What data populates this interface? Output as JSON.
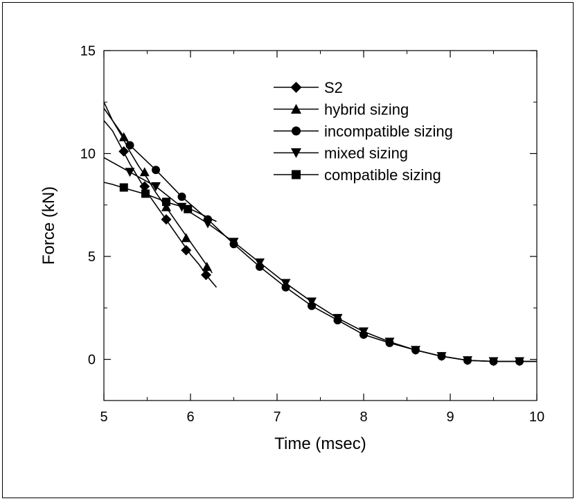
{
  "chart_data": {
    "type": "line",
    "title": "",
    "xlabel": "Time (msec)",
    "ylabel": "Force (kN)",
    "xlim": [
      5,
      10
    ],
    "ylim": [
      -2,
      15
    ],
    "xticks": [
      5,
      6,
      7,
      8,
      9,
      10
    ],
    "yticks": [
      0,
      5,
      10,
      15
    ],
    "grid": false,
    "legend": "top-right",
    "series": [
      {
        "name": "S2",
        "marker": "diamond",
        "x": [
          5.0,
          5.1,
          5.2,
          5.3,
          5.4,
          5.5,
          5.6,
          5.7,
          5.8,
          5.9,
          6.0,
          6.1,
          6.2,
          6.3
        ],
        "y": [
          11.6,
          11.1,
          10.3,
          9.5,
          8.8,
          8.1,
          7.5,
          6.9,
          6.3,
          5.7,
          5.1,
          4.6,
          4.0,
          3.5
        ],
        "markers_x": [
          5.23,
          5.47,
          5.72,
          5.95,
          6.18
        ],
        "markers_y": [
          10.1,
          8.4,
          6.8,
          5.3,
          4.1
        ]
      },
      {
        "name": "hybrid sizing",
        "marker": "triangle-up",
        "x": [
          5.0,
          5.1,
          5.2,
          5.3,
          5.4,
          5.5,
          5.6,
          5.7,
          5.8,
          5.9,
          6.0,
          6.1,
          6.2,
          6.25
        ],
        "y": [
          12.5,
          11.6,
          10.9,
          10.1,
          9.4,
          8.8,
          8.1,
          7.5,
          6.9,
          6.3,
          5.7,
          5.1,
          4.5,
          4.2
        ],
        "markers_x": [
          5.23,
          5.47,
          5.72,
          5.95,
          6.19
        ],
        "markers_y": [
          10.8,
          9.1,
          7.4,
          5.9,
          4.5
        ]
      },
      {
        "name": "incompatible sizing",
        "marker": "circle",
        "x": [
          5.0,
          5.3,
          5.6,
          5.9,
          6.2,
          6.5,
          6.8,
          7.1,
          7.4,
          7.7,
          8.0,
          8.3,
          8.6,
          8.9,
          9.2,
          9.5,
          9.8,
          10.0
        ],
        "y": [
          12.2,
          10.4,
          9.2,
          7.9,
          6.8,
          5.6,
          4.5,
          3.5,
          2.6,
          1.9,
          1.2,
          0.8,
          0.45,
          0.15,
          -0.05,
          -0.1,
          -0.1,
          -0.1
        ],
        "markers_x": [
          5.3,
          5.6,
          5.9,
          6.2,
          6.5,
          6.8,
          7.1,
          7.4,
          7.7,
          8.0,
          8.3,
          8.6,
          8.9,
          9.2,
          9.5,
          9.8
        ],
        "markers_y": [
          10.4,
          9.2,
          7.9,
          6.8,
          5.6,
          4.5,
          3.5,
          2.6,
          1.9,
          1.2,
          0.8,
          0.45,
          0.15,
          -0.05,
          -0.1,
          -0.1
        ]
      },
      {
        "name": "mixed sizing",
        "marker": "triangle-down",
        "x": [
          5.0,
          5.3,
          5.6,
          5.9,
          6.2,
          6.5,
          6.8,
          7.1,
          7.4,
          7.7,
          8.0,
          8.3,
          8.6,
          8.9,
          9.2,
          9.5,
          9.8,
          10.0
        ],
        "y": [
          9.8,
          9.1,
          8.4,
          7.4,
          6.6,
          5.7,
          4.7,
          3.7,
          2.8,
          2.0,
          1.35,
          0.85,
          0.45,
          0.15,
          -0.05,
          -0.1,
          -0.1,
          -0.1
        ],
        "markers_x": [
          5.3,
          5.6,
          5.9,
          6.2,
          6.5,
          6.8,
          7.1,
          7.4,
          7.7,
          8.0,
          8.3,
          8.6,
          8.9,
          9.2,
          9.5,
          9.8
        ],
        "markers_y": [
          9.1,
          8.4,
          7.4,
          6.6,
          5.7,
          4.7,
          3.7,
          2.8,
          2.0,
          1.35,
          0.85,
          0.45,
          0.15,
          -0.05,
          -0.1,
          -0.1
        ]
      },
      {
        "name": "compatible sizing",
        "marker": "square",
        "x": [
          5.0,
          5.1,
          5.25,
          5.5,
          5.75,
          6.0,
          6.2,
          6.3
        ],
        "y": [
          8.6,
          8.5,
          8.3,
          8.0,
          7.6,
          7.3,
          6.9,
          6.7
        ],
        "markers_x": [
          5.23,
          5.48,
          5.72,
          5.97
        ],
        "markers_y": [
          8.35,
          8.05,
          7.65,
          7.3
        ]
      }
    ]
  }
}
